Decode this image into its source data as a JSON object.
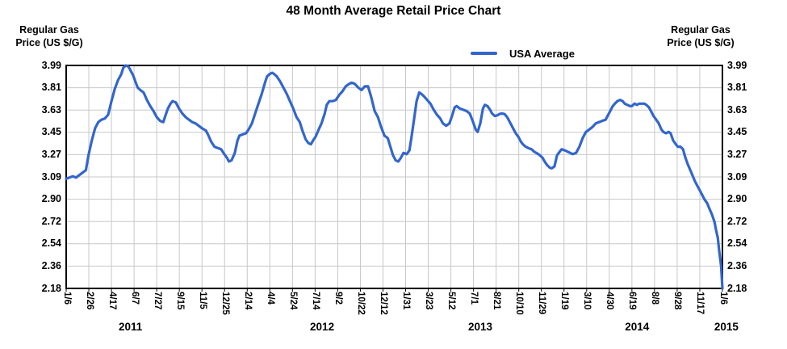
{
  "colors": {
    "line": "#3366cc",
    "grid": "#c8c8c8",
    "axis": "#000000",
    "text": "#000000"
  },
  "chart_data": {
    "type": "line",
    "title": "48 Month Average Retail Price Chart",
    "y_axis_title_lines": [
      "Regular Gas",
      "Price (US $/G)"
    ],
    "y_axis_title": "Regular Gas Price (US $/G)",
    "ylabel": "Regular Gas Price (US $/G)",
    "xlabel": "",
    "ylim": [
      2.18,
      3.99
    ],
    "grid": true,
    "legend_position": "top",
    "y_ticks": [
      "3.99",
      "3.81",
      "3.63",
      "3.45",
      "3.27",
      "3.09",
      "2.90",
      "2.72",
      "2.54",
      "2.36",
      "2.18"
    ],
    "x_tick_labels": [
      "1/6",
      "2/26",
      "4/17",
      "6/7",
      "7/27",
      "9/15",
      "11/5",
      "12/25",
      "2/14",
      "4/4",
      "5/24",
      "7/14",
      "9/2",
      "10/22",
      "12/12",
      "1/31",
      "3/23",
      "5/12",
      "7/1",
      "8/21",
      "10/10",
      "11/29",
      "1/19",
      "3/10",
      "4/30",
      "6/19",
      "8/8",
      "9/28",
      "11/17",
      "1/6"
    ],
    "x_year_labels": [
      {
        "label": "2011",
        "pos": 0.098
      },
      {
        "label": "2012",
        "pos": 0.39
      },
      {
        "label": "2013",
        "pos": 0.631
      },
      {
        "label": "2014",
        "pos": 0.87
      },
      {
        "label": "2015",
        "pos": 1.006
      }
    ],
    "series": [
      {
        "name": "USA Average",
        "color": "#3366cc",
        "unit": "US $/G",
        "points": [
          [
            0.0,
            3.07
          ],
          [
            0.005,
            3.08
          ],
          [
            0.01,
            3.09
          ],
          [
            0.015,
            3.08
          ],
          [
            0.02,
            3.1
          ],
          [
            0.025,
            3.12
          ],
          [
            0.03,
            3.14
          ],
          [
            0.034,
            3.26
          ],
          [
            0.039,
            3.38
          ],
          [
            0.044,
            3.48
          ],
          [
            0.049,
            3.53
          ],
          [
            0.054,
            3.55
          ],
          [
            0.059,
            3.56
          ],
          [
            0.064,
            3.59
          ],
          [
            0.069,
            3.7
          ],
          [
            0.074,
            3.8
          ],
          [
            0.079,
            3.87
          ],
          [
            0.084,
            3.92
          ],
          [
            0.087,
            3.97
          ],
          [
            0.091,
            3.99
          ],
          [
            0.095,
            3.98
          ],
          [
            0.098,
            3.95
          ],
          [
            0.102,
            3.91
          ],
          [
            0.106,
            3.85
          ],
          [
            0.109,
            3.81
          ],
          [
            0.113,
            3.79
          ],
          [
            0.118,
            3.77
          ],
          [
            0.123,
            3.71
          ],
          [
            0.128,
            3.66
          ],
          [
            0.133,
            3.62
          ],
          [
            0.138,
            3.57
          ],
          [
            0.143,
            3.54
          ],
          [
            0.148,
            3.53
          ],
          [
            0.151,
            3.58
          ],
          [
            0.155,
            3.64
          ],
          [
            0.159,
            3.68
          ],
          [
            0.162,
            3.7
          ],
          [
            0.167,
            3.69
          ],
          [
            0.172,
            3.64
          ],
          [
            0.177,
            3.6
          ],
          [
            0.182,
            3.57
          ],
          [
            0.187,
            3.55
          ],
          [
            0.192,
            3.53
          ],
          [
            0.197,
            3.52
          ],
          [
            0.202,
            3.5
          ],
          [
            0.207,
            3.48
          ],
          [
            0.213,
            3.46
          ],
          [
            0.216,
            3.43
          ],
          [
            0.221,
            3.37
          ],
          [
            0.226,
            3.33
          ],
          [
            0.231,
            3.32
          ],
          [
            0.236,
            3.31
          ],
          [
            0.241,
            3.27
          ],
          [
            0.245,
            3.24
          ],
          [
            0.248,
            3.21
          ],
          [
            0.252,
            3.22
          ],
          [
            0.257,
            3.28
          ],
          [
            0.261,
            3.38
          ],
          [
            0.264,
            3.42
          ],
          [
            0.269,
            3.43
          ],
          [
            0.274,
            3.44
          ],
          [
            0.278,
            3.47
          ],
          [
            0.283,
            3.52
          ],
          [
            0.288,
            3.6
          ],
          [
            0.293,
            3.68
          ],
          [
            0.298,
            3.76
          ],
          [
            0.303,
            3.85
          ],
          [
            0.306,
            3.9
          ],
          [
            0.31,
            3.92
          ],
          [
            0.314,
            3.93
          ],
          [
            0.317,
            3.92
          ],
          [
            0.321,
            3.9
          ],
          [
            0.326,
            3.86
          ],
          [
            0.331,
            3.81
          ],
          [
            0.336,
            3.76
          ],
          [
            0.341,
            3.7
          ],
          [
            0.346,
            3.64
          ],
          [
            0.351,
            3.57
          ],
          [
            0.356,
            3.53
          ],
          [
            0.36,
            3.46
          ],
          [
            0.365,
            3.39
          ],
          [
            0.369,
            3.36
          ],
          [
            0.373,
            3.35
          ],
          [
            0.376,
            3.38
          ],
          [
            0.38,
            3.41
          ],
          [
            0.384,
            3.46
          ],
          [
            0.389,
            3.52
          ],
          [
            0.394,
            3.6
          ],
          [
            0.397,
            3.67
          ],
          [
            0.401,
            3.7
          ],
          [
            0.406,
            3.7
          ],
          [
            0.411,
            3.71
          ],
          [
            0.416,
            3.75
          ],
          [
            0.421,
            3.78
          ],
          [
            0.426,
            3.82
          ],
          [
            0.431,
            3.84
          ],
          [
            0.435,
            3.85
          ],
          [
            0.44,
            3.84
          ],
          [
            0.445,
            3.81
          ],
          [
            0.45,
            3.79
          ],
          [
            0.455,
            3.82
          ],
          [
            0.46,
            3.82
          ],
          [
            0.465,
            3.73
          ],
          [
            0.47,
            3.62
          ],
          [
            0.475,
            3.57
          ],
          [
            0.48,
            3.49
          ],
          [
            0.485,
            3.42
          ],
          [
            0.49,
            3.4
          ],
          [
            0.494,
            3.33
          ],
          [
            0.498,
            3.26
          ],
          [
            0.502,
            3.22
          ],
          [
            0.506,
            3.21
          ],
          [
            0.51,
            3.24
          ],
          [
            0.514,
            3.28
          ],
          [
            0.519,
            3.27
          ],
          [
            0.523,
            3.3
          ],
          [
            0.526,
            3.4
          ],
          [
            0.53,
            3.55
          ],
          [
            0.534,
            3.7
          ],
          [
            0.538,
            3.77
          ],
          [
            0.541,
            3.76
          ],
          [
            0.545,
            3.74
          ],
          [
            0.55,
            3.71
          ],
          [
            0.555,
            3.68
          ],
          [
            0.56,
            3.63
          ],
          [
            0.565,
            3.59
          ],
          [
            0.57,
            3.56
          ],
          [
            0.574,
            3.52
          ],
          [
            0.579,
            3.5
          ],
          [
            0.584,
            3.52
          ],
          [
            0.588,
            3.58
          ],
          [
            0.592,
            3.65
          ],
          [
            0.595,
            3.66
          ],
          [
            0.6,
            3.64
          ],
          [
            0.605,
            3.63
          ],
          [
            0.61,
            3.62
          ],
          [
            0.615,
            3.6
          ],
          [
            0.62,
            3.53
          ],
          [
            0.624,
            3.47
          ],
          [
            0.627,
            3.45
          ],
          [
            0.631,
            3.52
          ],
          [
            0.635,
            3.64
          ],
          [
            0.638,
            3.67
          ],
          [
            0.642,
            3.66
          ],
          [
            0.646,
            3.63
          ],
          [
            0.649,
            3.6
          ],
          [
            0.653,
            3.58
          ],
          [
            0.657,
            3.585
          ],
          [
            0.66,
            3.595
          ],
          [
            0.664,
            3.6
          ],
          [
            0.668,
            3.595
          ],
          [
            0.672,
            3.57
          ],
          [
            0.675,
            3.54
          ],
          [
            0.68,
            3.49
          ],
          [
            0.685,
            3.44
          ],
          [
            0.689,
            3.41
          ],
          [
            0.693,
            3.37
          ],
          [
            0.696,
            3.35
          ],
          [
            0.7,
            3.33
          ],
          [
            0.704,
            3.32
          ],
          [
            0.709,
            3.31
          ],
          [
            0.713,
            3.29
          ],
          [
            0.718,
            3.275
          ],
          [
            0.722,
            3.26
          ],
          [
            0.726,
            3.24
          ],
          [
            0.729,
            3.21
          ],
          [
            0.733,
            3.18
          ],
          [
            0.737,
            3.16
          ],
          [
            0.74,
            3.155
          ],
          [
            0.744,
            3.17
          ],
          [
            0.748,
            3.26
          ],
          [
            0.752,
            3.29
          ],
          [
            0.755,
            3.31
          ],
          [
            0.76,
            3.3
          ],
          [
            0.764,
            3.29
          ],
          [
            0.768,
            3.28
          ],
          [
            0.772,
            3.27
          ],
          [
            0.777,
            3.28
          ],
          [
            0.782,
            3.33
          ],
          [
            0.787,
            3.4
          ],
          [
            0.792,
            3.45
          ],
          [
            0.797,
            3.47
          ],
          [
            0.802,
            3.49
          ],
          [
            0.807,
            3.52
          ],
          [
            0.812,
            3.53
          ],
          [
            0.817,
            3.54
          ],
          [
            0.822,
            3.55
          ],
          [
            0.825,
            3.58
          ],
          [
            0.829,
            3.62
          ],
          [
            0.833,
            3.66
          ],
          [
            0.836,
            3.68
          ],
          [
            0.84,
            3.7
          ],
          [
            0.844,
            3.71
          ],
          [
            0.848,
            3.7
          ],
          [
            0.851,
            3.68
          ],
          [
            0.855,
            3.67
          ],
          [
            0.859,
            3.66
          ],
          [
            0.862,
            3.66
          ],
          [
            0.866,
            3.68
          ],
          [
            0.87,
            3.67
          ],
          [
            0.873,
            3.68
          ],
          [
            0.877,
            3.68
          ],
          [
            0.881,
            3.68
          ],
          [
            0.884,
            3.67
          ],
          [
            0.888,
            3.65
          ],
          [
            0.892,
            3.61
          ],
          [
            0.895,
            3.58
          ],
          [
            0.899,
            3.55
          ],
          [
            0.903,
            3.52
          ],
          [
            0.907,
            3.47
          ],
          [
            0.91,
            3.45
          ],
          [
            0.914,
            3.44
          ],
          [
            0.918,
            3.45
          ],
          [
            0.921,
            3.44
          ],
          [
            0.925,
            3.38
          ],
          [
            0.929,
            3.35
          ],
          [
            0.932,
            3.33
          ],
          [
            0.936,
            3.33
          ],
          [
            0.94,
            3.31
          ],
          [
            0.943,
            3.25
          ],
          [
            0.947,
            3.19
          ],
          [
            0.951,
            3.14
          ],
          [
            0.955,
            3.09
          ],
          [
            0.958,
            3.05
          ],
          [
            0.962,
            3.01
          ],
          [
            0.966,
            2.97
          ],
          [
            0.969,
            2.94
          ],
          [
            0.973,
            2.9
          ],
          [
            0.977,
            2.87
          ],
          [
            0.98,
            2.83
          ],
          [
            0.984,
            2.78
          ],
          [
            0.988,
            2.72
          ],
          [
            0.99,
            2.66
          ],
          [
            0.993,
            2.59
          ],
          [
            0.995,
            2.49
          ],
          [
            0.998,
            2.36
          ],
          [
            1.0,
            2.18
          ]
        ]
      }
    ]
  }
}
